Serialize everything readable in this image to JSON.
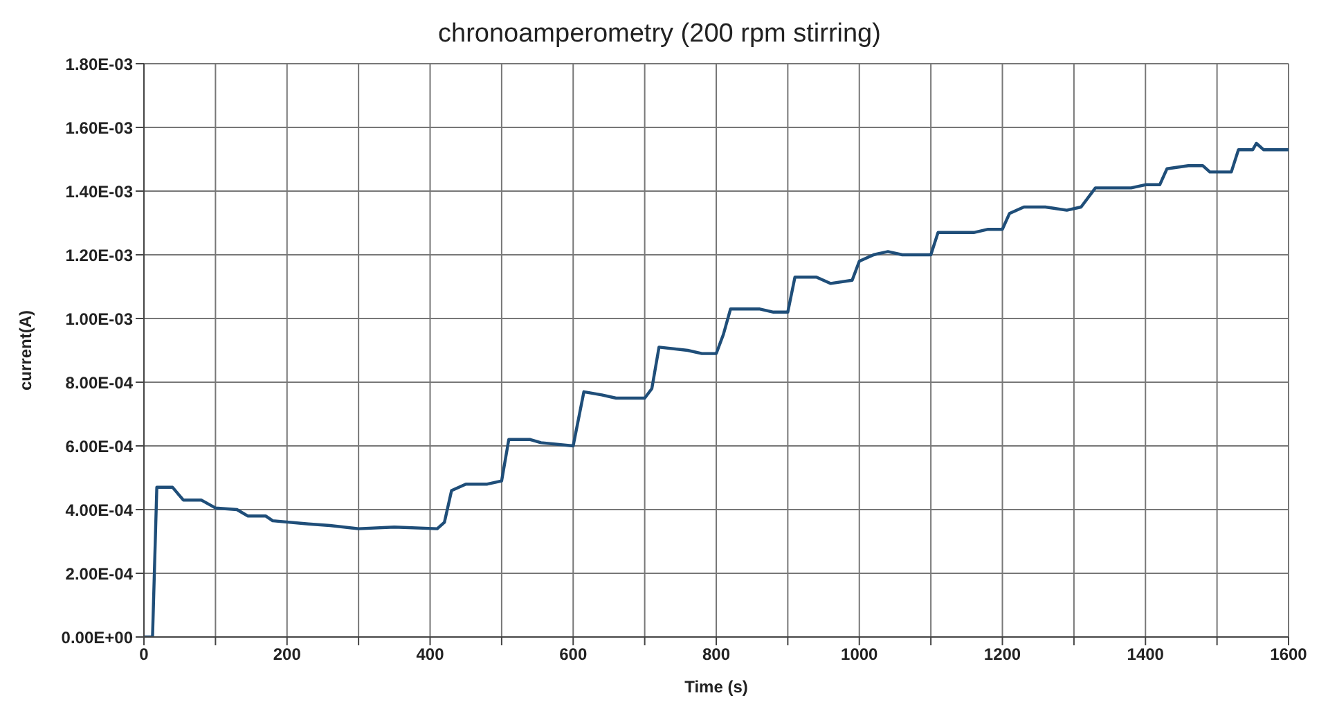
{
  "chart_data": {
    "type": "line",
    "title": "chronoamperometry (200 rpm stirring)",
    "xlabel": "Time (s)",
    "ylabel": "current(A)",
    "xlim": [
      0,
      1600
    ],
    "xticks": [
      0,
      {
        "value": 100,
        "label": null
      },
      200,
      {
        "value": 300,
        "label": null
      },
      400,
      {
        "value": 500,
        "label": null
      },
      600,
      {
        "value": 700,
        "label": null
      },
      800,
      {
        "value": 900,
        "label": null
      },
      1000,
      {
        "value": 1100,
        "label": null
      },
      1200,
      {
        "value": 1300,
        "label": null
      },
      1400,
      {
        "value": 1500,
        "label": null
      },
      1600
    ],
    "ylim": [
      0,
      0.0018
    ],
    "yticks": [
      {
        "value": 0,
        "label": "0.00E+00"
      },
      {
        "value": 0.0002,
        "label": "2.00E-04"
      },
      {
        "value": 0.0004,
        "label": "4.00E-04"
      },
      {
        "value": 0.0006,
        "label": "6.00E-04"
      },
      {
        "value": 0.0008,
        "label": "8.00E-04"
      },
      {
        "value": 0.001,
        "label": "1.00E-03"
      },
      {
        "value": 0.0012,
        "label": "1.20E-03"
      },
      {
        "value": 0.0014,
        "label": "1.40E-03"
      },
      {
        "value": 0.0016,
        "label": "1.60E-03"
      },
      {
        "value": 0.0018,
        "label": "1.80E-03"
      }
    ],
    "grid": true,
    "legend": false,
    "marker": "none",
    "line_style": "solid",
    "x": [
      0,
      12,
      18,
      40,
      55,
      80,
      100,
      130,
      145,
      170,
      180,
      230,
      260,
      300,
      350,
      410,
      420,
      430,
      450,
      480,
      500,
      510,
      540,
      555,
      600,
      615,
      640,
      660,
      700,
      710,
      720,
      760,
      780,
      800,
      810,
      820,
      860,
      880,
      900,
      910,
      940,
      960,
      990,
      1000,
      1020,
      1040,
      1060,
      1100,
      1110,
      1160,
      1180,
      1200,
      1210,
      1230,
      1260,
      1290,
      1310,
      1330,
      1380,
      1400,
      1420,
      1430,
      1460,
      1480,
      1490,
      1520,
      1530,
      1550,
      1555,
      1565,
      1600
    ],
    "series": [
      {
        "color": "#1f4e79",
        "values": [
          0,
          0,
          0.00047,
          0.00047,
          0.00043,
          0.00043,
          0.000405,
          0.0004,
          0.00038,
          0.00038,
          0.000365,
          0.000355,
          0.00035,
          0.00034,
          0.000345,
          0.00034,
          0.00036,
          0.00046,
          0.00048,
          0.00048,
          0.00049,
          0.00062,
          0.00062,
          0.00061,
          0.0006,
          0.00077,
          0.00076,
          0.00075,
          0.00075,
          0.00078,
          0.00091,
          0.0009,
          0.00089,
          0.00089,
          0.00095,
          0.00103,
          0.00103,
          0.00102,
          0.00102,
          0.00113,
          0.00113,
          0.00111,
          0.00112,
          0.00118,
          0.0012,
          0.00121,
          0.0012,
          0.0012,
          0.00127,
          0.00127,
          0.00128,
          0.00128,
          0.00133,
          0.00135,
          0.00135,
          0.00134,
          0.00135,
          0.00141,
          0.00141,
          0.00142,
          0.00142,
          0.00147,
          0.00148,
          0.00148,
          0.00146,
          0.00146,
          0.00153,
          0.00153,
          0.00155,
          0.00153,
          0.00153
        ]
      }
    ]
  }
}
